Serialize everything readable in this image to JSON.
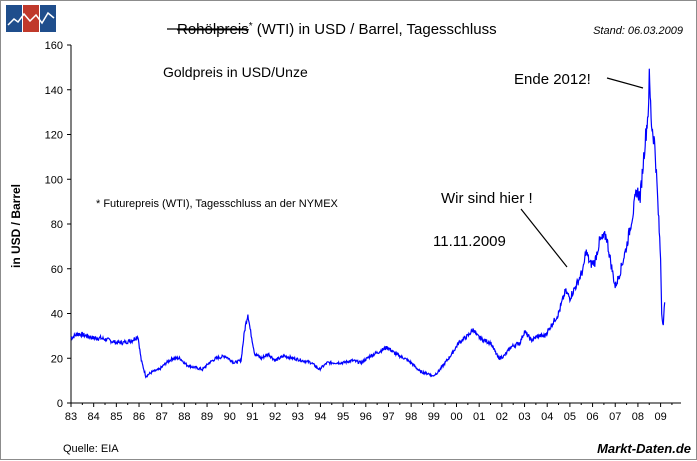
{
  "header": {
    "title_struck": "Rohölpreis",
    "title_star": "*",
    "title_rest": " (WTI) in USD / Barrel, Tagesschluss",
    "stand": "Stand: 06.03.2009"
  },
  "logo": {
    "colors": [
      "#1f4e8c",
      "#c0392b",
      "#1f4e8c"
    ]
  },
  "annotations": {
    "goldpreis": "Goldpreis in USD/Unze",
    "future_note": "* Futurepreis (WTI), Tagesschluss an der NYMEX",
    "ende_2012": "Ende 2012!",
    "wir_sind_hier": "Wir sind hier !",
    "date_label": "11.11.2009"
  },
  "footer": {
    "source": "Quelle: EIA",
    "brand": "Markt-Daten.de"
  },
  "chart_data": {
    "type": "line",
    "ylabel": "in USD / Barrel",
    "xlabel": "",
    "ylim": [
      0,
      160
    ],
    "yticks": [
      0,
      20,
      40,
      60,
      80,
      100,
      120,
      140,
      160
    ],
    "xlim": [
      1983,
      2009.9
    ],
    "xticks": [
      "83",
      "84",
      "85",
      "86",
      "87",
      "88",
      "89",
      "90",
      "91",
      "92",
      "93",
      "94",
      "95",
      "96",
      "97",
      "98",
      "99",
      "00",
      "01",
      "02",
      "03",
      "04",
      "05",
      "06",
      "07",
      "08",
      "09"
    ],
    "line_color": "#0000ff",
    "grid": false,
    "series": [
      {
        "x": [
          1983.0,
          1983.3,
          1983.7,
          1984.0,
          1984.3,
          1984.7,
          1985.0,
          1985.3,
          1985.7,
          1985.95,
          1986.1,
          1986.3,
          1986.6,
          1986.9,
          1987.2,
          1987.5,
          1987.8,
          1988.1,
          1988.4,
          1988.8,
          1989.1,
          1989.4,
          1989.8,
          1990.2,
          1990.5,
          1990.65,
          1990.8,
          1990.9,
          1991.1,
          1991.4,
          1991.7,
          1992.0,
          1992.4,
          1992.8,
          1993.2,
          1993.6,
          1993.95,
          1994.3,
          1994.7,
          1995.0,
          1995.4,
          1995.8,
          1996.2,
          1996.6,
          1996.95,
          1997.3,
          1997.7,
          1998.0,
          1998.4,
          1998.8,
          1998.95,
          1999.2,
          1999.5,
          1999.8,
          2000.1,
          2000.5,
          2000.75,
          2000.9,
          2001.2,
          2001.5,
          2001.85,
          2002.1,
          2002.4,
          2002.8,
          2003.0,
          2003.3,
          2003.6,
          2003.9,
          2004.2,
          2004.5,
          2004.8,
          2005.0,
          2005.3,
          2005.6,
          2005.7,
          2005.9,
          2006.1,
          2006.3,
          2006.6,
          2006.8,
          2007.0,
          2007.2,
          2007.5,
          2007.8,
          2007.95,
          2008.1,
          2008.3,
          2008.45,
          2008.5,
          2008.6,
          2008.75,
          2008.9,
          2009.0,
          2009.05,
          2009.12,
          2009.18
        ],
        "y": [
          29,
          31,
          30,
          29,
          29,
          28,
          27,
          27,
          28,
          30,
          19,
          12,
          14,
          15,
          18,
          20,
          20,
          17,
          16,
          15,
          18,
          20,
          21,
          18,
          19,
          32,
          40,
          33,
          22,
          20,
          22,
          19,
          21,
          20,
          19,
          18,
          15,
          18,
          18,
          18,
          19,
          18,
          21,
          23,
          25,
          22,
          20,
          18,
          14,
          13,
          12,
          14,
          18,
          22,
          27,
          30,
          33,
          30,
          28,
          27,
          20,
          21,
          25,
          27,
          32,
          28,
          30,
          30,
          35,
          40,
          50,
          47,
          53,
          60,
          68,
          62,
          63,
          72,
          75,
          63,
          52,
          58,
          70,
          86,
          95,
          92,
          115,
          130,
          145,
          125,
          115,
          85,
          65,
          40,
          35,
          45
        ]
      }
    ]
  }
}
